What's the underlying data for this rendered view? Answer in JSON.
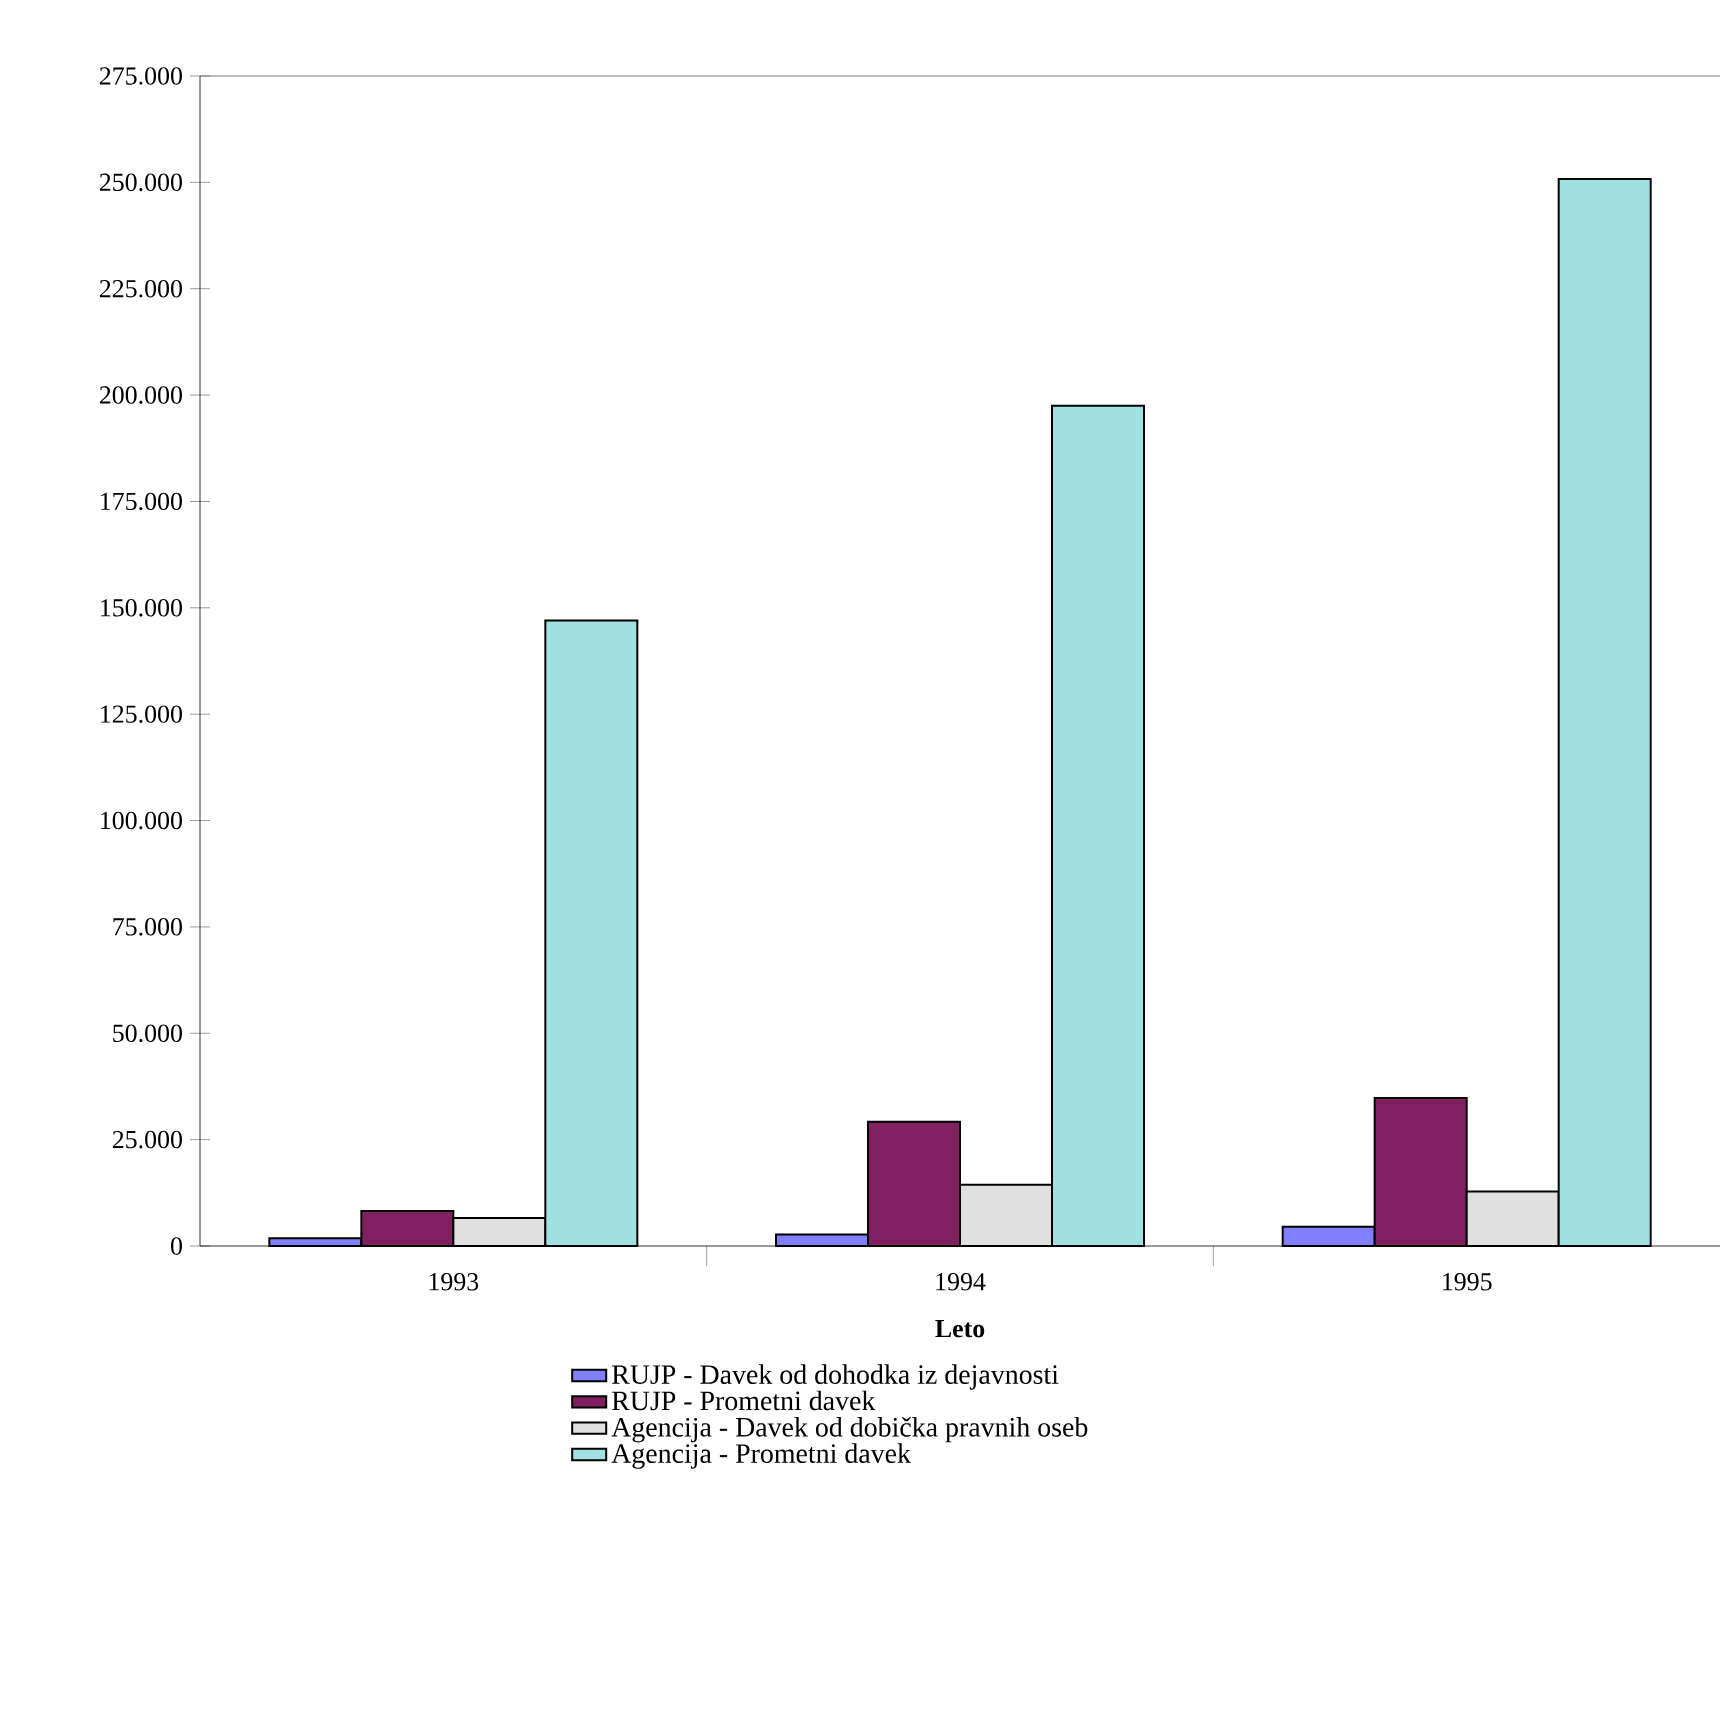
{
  "chart_data": {
    "type": "bar",
    "xlabel": "Leto",
    "categories": [
      "1993",
      "1994",
      "1995"
    ],
    "series": [
      {
        "name": "RUJP - Davek od dohodka iz dejavnosti",
        "color": "#8080ff",
        "values": [
          1800,
          2700,
          4500
        ]
      },
      {
        "name": "RUJP - Prometni davek",
        "color": "#802060",
        "values": [
          8200,
          29200,
          34800
        ]
      },
      {
        "name": "Agencija - Davek od dobička pravnih oseb",
        "color": "#e0e0e0",
        "values": [
          6600,
          14400,
          12800
        ]
      },
      {
        "name": "Agencija - Prometni davek",
        "color": "#a0e0e0",
        "values": [
          147000,
          197500,
          250800
        ]
      }
    ],
    "ylim": [
      0,
      275000
    ],
    "yticks": [
      {
        "value": 0,
        "label": "0"
      },
      {
        "value": 25000,
        "label": "25.000"
      },
      {
        "value": 50000,
        "label": "50.000"
      },
      {
        "value": 75000,
        "label": "75.000"
      },
      {
        "value": 100000,
        "label": "100.000"
      },
      {
        "value": 125000,
        "label": "125.000"
      },
      {
        "value": 150000,
        "label": "150.000"
      },
      {
        "value": 175000,
        "label": "175.000"
      },
      {
        "value": 200000,
        "label": "200.000"
      },
      {
        "value": 225000,
        "label": "225.000"
      },
      {
        "value": 250000,
        "label": "250.000"
      },
      {
        "value": 275000,
        "label": "275.000"
      }
    ],
    "grid": false,
    "legend": "bottom"
  }
}
